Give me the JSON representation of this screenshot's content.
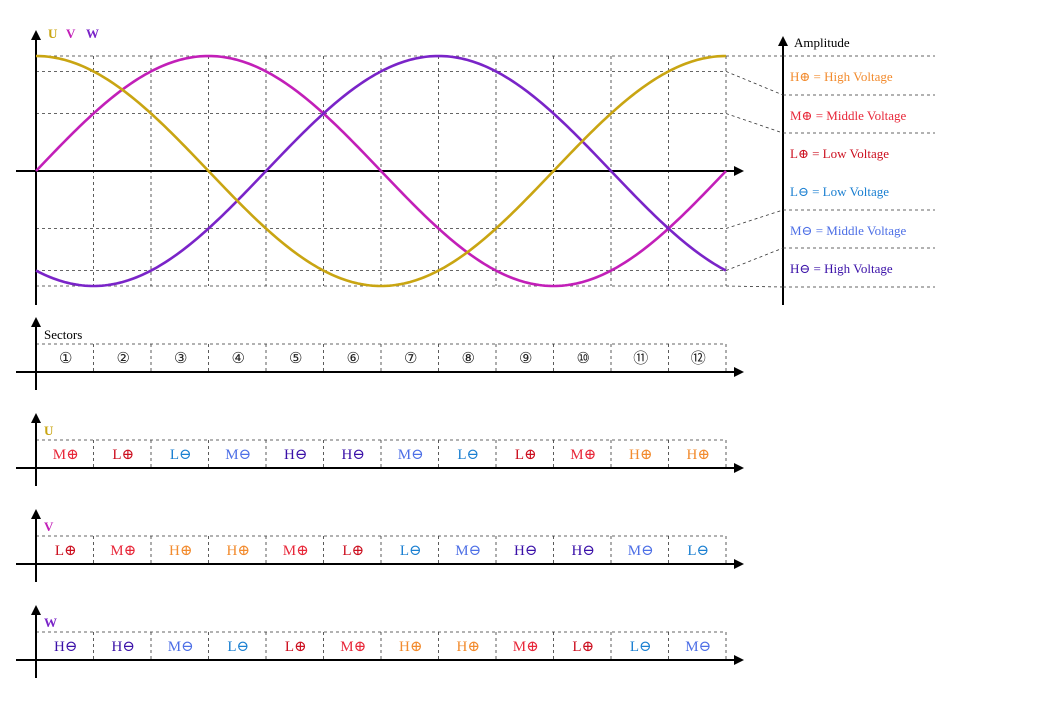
{
  "colors": {
    "U": "#c9a512",
    "V": "#c21fb8",
    "W": "#7a24c8",
    "H_pos": "#f28b2e",
    "M_pos": "#e8283a",
    "L_pos": "#cc1020",
    "L_neg": "#1a7fd1",
    "M_neg": "#4d6fe6",
    "H_neg": "#3a10a8",
    "axis": "#000000",
    "grid": "#333333"
  },
  "waveform": {
    "phase_labels": [
      "U",
      "V",
      "W"
    ],
    "amplitude_label": "Amplitude",
    "legend": [
      {
        "key": "H_pos",
        "text": "H⊕ = High Voltage"
      },
      {
        "key": "M_pos",
        "text": "M⊕ = Middle Voltage"
      },
      {
        "key": "L_pos",
        "text": "L⊕ = Low Voltage"
      },
      {
        "key": "L_neg",
        "text": "L⊖ = Low Voltage"
      },
      {
        "key": "M_neg",
        "text": "M⊖ = Middle Voltage"
      },
      {
        "key": "H_neg",
        "text": "H⊖ = High Voltage"
      }
    ],
    "phase_offsets_deg": {
      "U": 90,
      "V": 0,
      "W": 240
    },
    "period_sectors": 12
  },
  "sectors": {
    "label": "Sectors",
    "items": [
      "①",
      "②",
      "③",
      "④",
      "⑤",
      "⑥",
      "⑦",
      "⑧",
      "⑨",
      "⑩",
      "⑪",
      "⑫"
    ]
  },
  "phase_rows": [
    {
      "phase": "U",
      "label": "U",
      "cells": [
        "M⊕",
        "L⊕",
        "L⊖",
        "M⊖",
        "H⊖",
        "H⊖",
        "M⊖",
        "L⊖",
        "L⊕",
        "M⊕",
        "H⊕",
        "H⊕"
      ]
    },
    {
      "phase": "V",
      "label": "V",
      "cells": [
        "L⊕",
        "M⊕",
        "H⊕",
        "H⊕",
        "M⊕",
        "L⊕",
        "L⊖",
        "M⊖",
        "H⊖",
        "H⊖",
        "M⊖",
        "L⊖"
      ]
    },
    {
      "phase": "W",
      "label": "W",
      "cells": [
        "H⊖",
        "H⊖",
        "M⊖",
        "L⊖",
        "L⊕",
        "M⊕",
        "H⊕",
        "H⊕",
        "M⊕",
        "L⊕",
        "L⊖",
        "M⊖"
      ]
    }
  ]
}
